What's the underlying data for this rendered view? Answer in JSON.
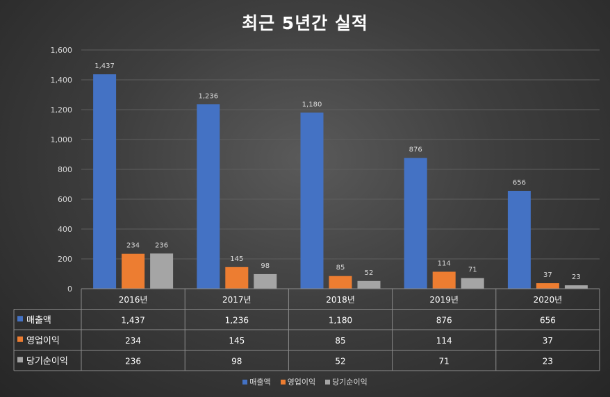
{
  "chart_data": {
    "type": "bar",
    "title": "최근 5년간 실적",
    "categories": [
      "2016년",
      "2017년",
      "2018년",
      "2019년",
      "2020년"
    ],
    "series": [
      {
        "name": "매출액",
        "color": "#4472c4",
        "values": [
          1437,
          1236,
          1180,
          876,
          656
        ],
        "labels": [
          "1,437",
          "1,236",
          "1,180",
          "876",
          "656"
        ]
      },
      {
        "name": "영업이익",
        "color": "#ed7d31",
        "values": [
          234,
          145,
          85,
          114,
          37
        ],
        "labels": [
          "234",
          "145",
          "85",
          "114",
          "37"
        ]
      },
      {
        "name": "당기순이익",
        "color": "#a5a5a5",
        "values": [
          236,
          98,
          52,
          71,
          23
        ],
        "labels": [
          "236",
          "98",
          "52",
          "71",
          "23"
        ]
      }
    ],
    "ylim": [
      0,
      1600
    ],
    "yticks": [
      0,
      200,
      400,
      600,
      800,
      1000,
      1200,
      1400,
      1600
    ],
    "ytick_labels": [
      "0",
      "200",
      "400",
      "600",
      "800",
      "1,000",
      "1,200",
      "1,400",
      "1,600"
    ],
    "grid": true,
    "data_table": true,
    "legend": "bottom-center",
    "xlabel": "",
    "ylabel": ""
  }
}
